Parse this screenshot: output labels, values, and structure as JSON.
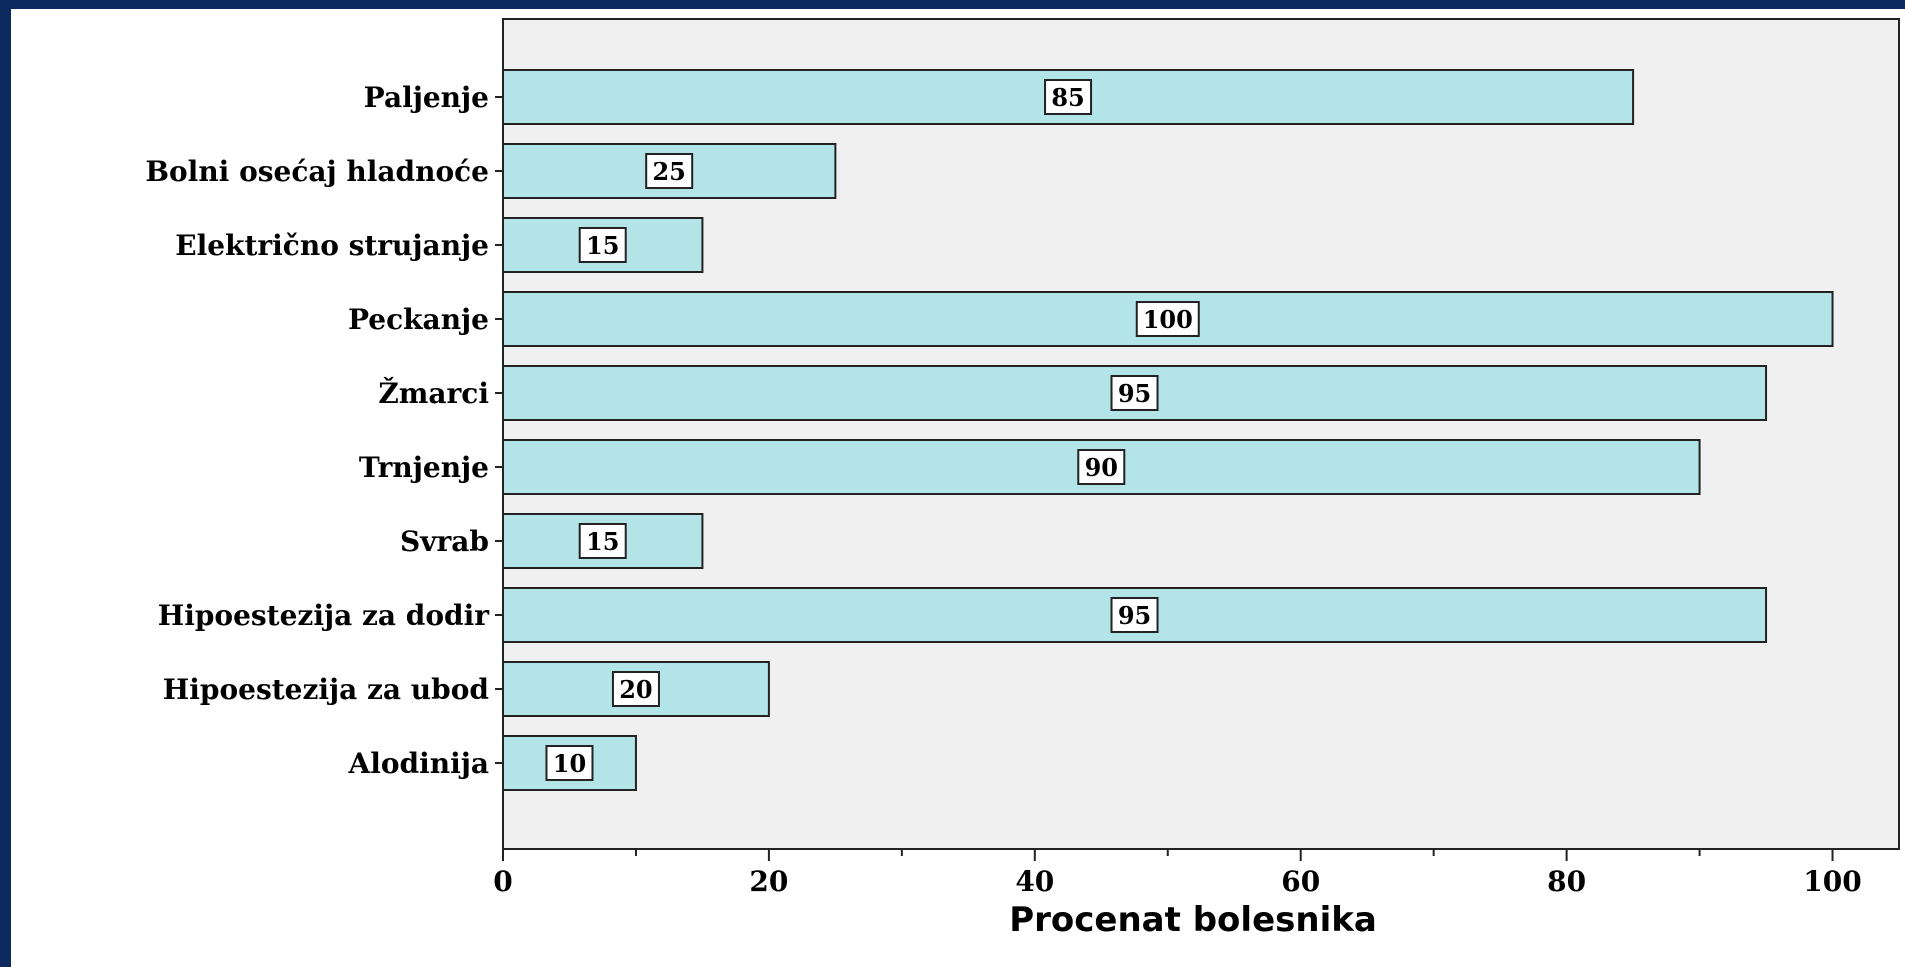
{
  "chart_data": {
    "type": "bar",
    "orientation": "horizontal",
    "categories": [
      "Paljenje",
      "Bolni osećaj hladnoće",
      "Električno strujanje",
      "Peckanje",
      "Žmarci",
      "Trnjenje",
      "Svrab",
      "Hipoestezija za dodir",
      "Hipoestezija za ubod",
      "Alodinija"
    ],
    "values": [
      85,
      25,
      15,
      100,
      95,
      90,
      15,
      95,
      20,
      10
    ],
    "value_labels": [
      "85",
      "25",
      "15",
      "100",
      "95",
      "90",
      "15",
      "95",
      "20",
      "10"
    ],
    "xlabel": "Procenat bolesnika",
    "ylabel": "",
    "xlim": [
      0,
      105
    ],
    "x_ticks": [
      0,
      20,
      40,
      60,
      80,
      100
    ],
    "x_tick_labels": [
      "0",
      "20",
      "40",
      "60",
      "80",
      "100"
    ],
    "grid": false,
    "colors": {
      "bar_fill": "#b3e4e8",
      "plot_background": "#f0f0f0",
      "page_frame": "#0c2a5e"
    }
  }
}
